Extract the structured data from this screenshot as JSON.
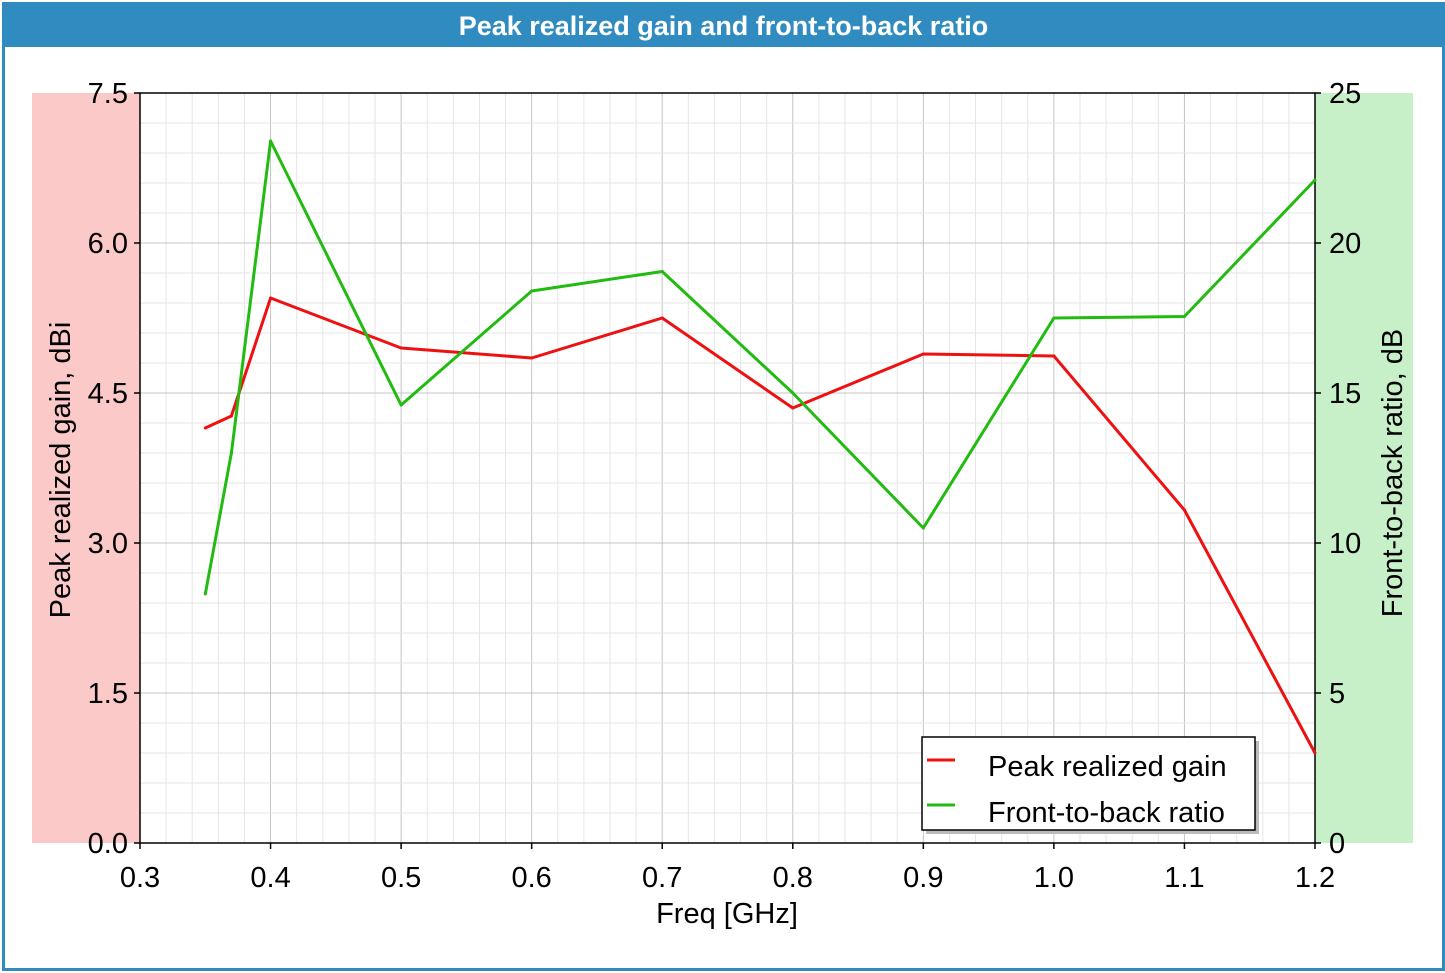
{
  "chart_data": {
    "type": "line",
    "title": "Peak realized gain and front-to-back ratio",
    "xlabel": "Freq [GHz]",
    "ylabel_left": "Peak realized gain, dBi",
    "ylabel_right": "Front-to-back ratio, dB",
    "xlim": [
      0.3,
      1.2
    ],
    "ylim_left": [
      0,
      7.5
    ],
    "ylim_right": [
      0,
      25
    ],
    "x_ticks": [
      "0.3",
      "0.4",
      "0.5",
      "0.6",
      "0.7",
      "0.8",
      "0.9",
      "1.0",
      "1.1",
      "1.2"
    ],
    "y_ticks_left": [
      "0.0",
      "1.5",
      "3.0",
      "4.5",
      "6.0",
      "7.5"
    ],
    "y_ticks_right": [
      "0",
      "5",
      "10",
      "15",
      "20",
      "25"
    ],
    "grid": true,
    "legend_position": "bottom-right",
    "left_band_color": "#fcc9c9",
    "right_band_color": "#c8f0c8",
    "series": [
      {
        "name": "Peak realized gain",
        "axis": "left",
        "color": "#ee1111",
        "x": [
          0.35,
          0.37,
          0.4,
          0.5,
          0.6,
          0.7,
          0.8,
          0.9,
          1.0,
          1.1,
          1.2
        ],
        "y": [
          4.15,
          4.27,
          5.45,
          4.95,
          4.85,
          5.25,
          4.35,
          4.89,
          4.87,
          3.33,
          0.9
        ]
      },
      {
        "name": "Front-to-back ratio",
        "axis": "right",
        "color": "#22bb11",
        "x": [
          0.35,
          0.37,
          0.4,
          0.5,
          0.6,
          0.7,
          0.8,
          0.9,
          1.0,
          1.1,
          1.2
        ],
        "y": [
          8.3,
          13.0,
          23.4,
          14.6,
          18.4,
          19.05,
          15.0,
          10.5,
          17.5,
          17.55,
          22.1
        ]
      }
    ]
  }
}
